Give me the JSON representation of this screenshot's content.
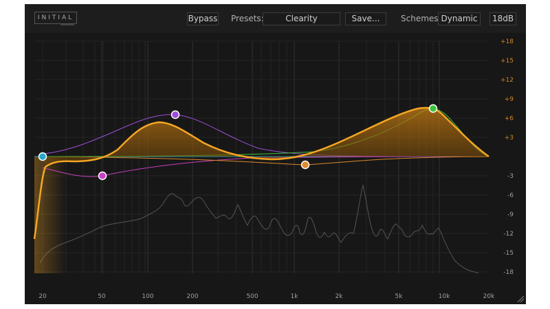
{
  "header": {
    "logo": "INITIAL",
    "bypass_label": "Bypass",
    "presets_label": "Presets:",
    "preset_value": "Clearity",
    "save_label": "Save...",
    "schemes_label": "Schemes:",
    "scheme_value": "Dynamic",
    "range_label": "18dB"
  },
  "colors": {
    "accent": "#f5a623",
    "band_low": "#2aa8c8",
    "band_lowmid": "#c840c0",
    "band_mid": "#9d4ed8",
    "band_highmid": "#e08a2a",
    "band_high": "#3cc43c"
  },
  "eq": {
    "x_axis_labels": [
      "20",
      "50",
      "100",
      "200",
      "500",
      "1k",
      "2k",
      "5k",
      "10k",
      "20k"
    ],
    "y_axis_labels": [
      "+18",
      "+15",
      "+12",
      "+9",
      "+6",
      "+3",
      "-3",
      "-6",
      "-9",
      "-12",
      "-15",
      "-18"
    ],
    "bands": [
      {
        "name": "band-1",
        "freq_hz": 20,
        "gain_db": 0,
        "color": "#2aa8c8"
      },
      {
        "name": "band-2",
        "freq_hz": 50,
        "gain_db": -3,
        "color": "#c840c0"
      },
      {
        "name": "band-3",
        "freq_hz": 150,
        "gain_db": 6.5,
        "color": "#9d4ed8"
      },
      {
        "name": "band-4",
        "freq_hz": 1200,
        "gain_db": -1.2,
        "color": "#e08a2a"
      },
      {
        "name": "band-5",
        "freq_hz": 8500,
        "gain_db": 7.5,
        "color": "#3cc43c"
      }
    ]
  }
}
